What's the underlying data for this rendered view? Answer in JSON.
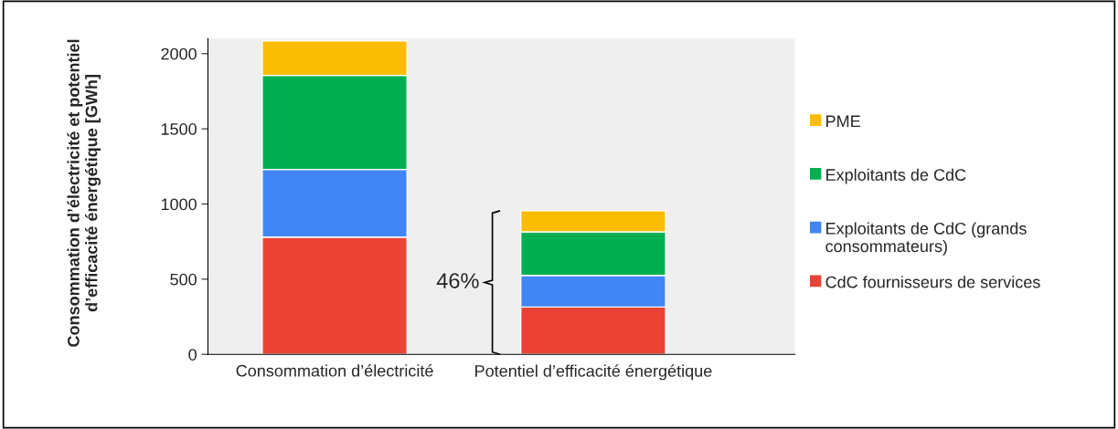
{
  "chart_data": {
    "type": "bar",
    "stacked": true,
    "ylabel": "Consommation d’électricité et potentiel d’efficacité énergétique [GWh]",
    "categories": [
      "Consommation d’électricité",
      "Potentiel d’efficacité énergétique"
    ],
    "series": [
      {
        "name": "CdC fournisseurs de services",
        "color": "#ea4335",
        "values": [
          780,
          315
        ]
      },
      {
        "name": "Exploitants de CdC (grands consommateurs)",
        "color": "#4285f4",
        "values": [
          450,
          210
        ]
      },
      {
        "name": "Exploitants de CdC",
        "color": "#00b050",
        "values": [
          625,
          290
        ]
      },
      {
        "name": "PME",
        "color": "#fbbc04",
        "values": [
          230,
          140
        ]
      }
    ],
    "ylim": [
      0,
      2100
    ],
    "yticks": [
      0,
      500,
      1000,
      1500,
      2000
    ],
    "grid": false,
    "legend": "right",
    "annotations": [
      "46%"
    ]
  }
}
